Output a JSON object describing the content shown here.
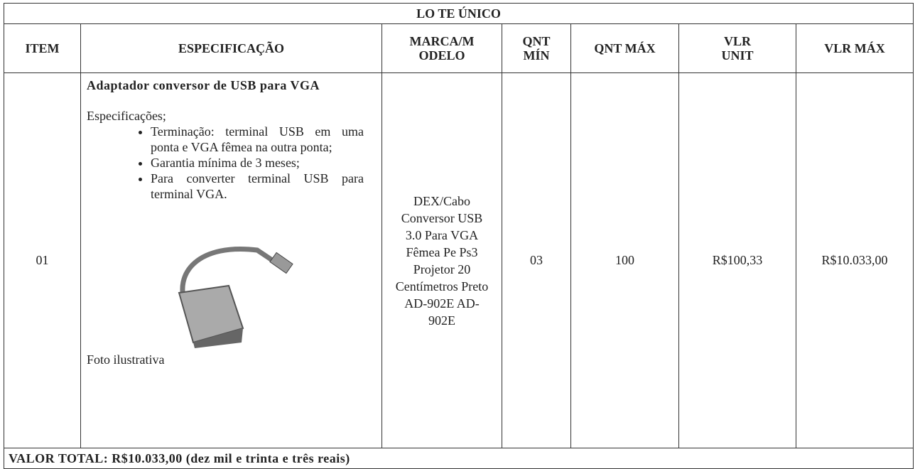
{
  "table": {
    "title": "LO TE ÚNICO",
    "headers": [
      [
        "ITEM"
      ],
      [
        "ESPECIFICAÇÃO"
      ],
      [
        "MARCA/M",
        "ODELO"
      ],
      [
        "QNT",
        "MÍN"
      ],
      [
        "QNT MÁX"
      ],
      [
        "VLR",
        "UNIT"
      ],
      [
        "VLR MÁX"
      ]
    ],
    "row": {
      "item": "01",
      "spec_title": "Adaptador conversor de USB para VGA",
      "spec_intro": "Especificações;",
      "spec_bullets": [
        "Terminação: terminal USB em uma ponta e VGA fêmea na outra ponta;",
        "Garantia mínima de 3 meses;",
        "Para converter terminal USB para terminal VGA."
      ],
      "photo_caption": "Foto ilustrativa",
      "brand_model": "DEX/Cabo Conversor USB 3.0 Para VGA Fêmea Pe Ps3 Projetor 20 Centímetros Preto AD-902E AD-902E",
      "qnt_min": "03",
      "qnt_max": "100",
      "unit_price": "R$100,33",
      "max_price": "R$10.033,00"
    },
    "total": "VALOR TOTAL: R$10.033,00 (dez mil e trinta e três reais)"
  }
}
